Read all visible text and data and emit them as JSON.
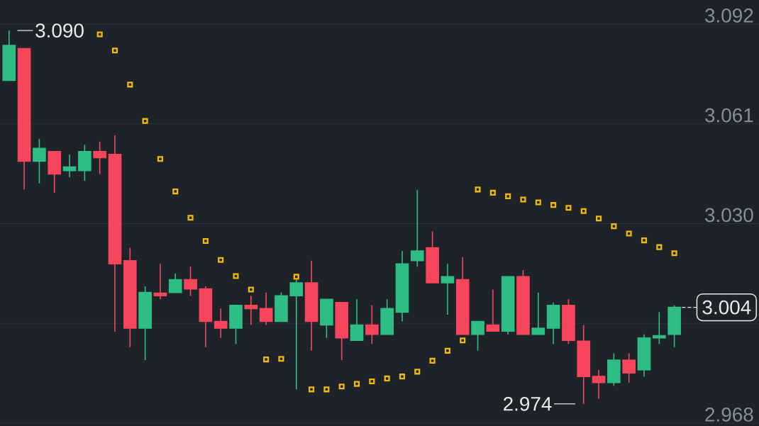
{
  "chart_data": {
    "type": "candlestick",
    "categories": [
      null,
      null,
      null,
      null,
      null,
      null,
      null,
      null,
      null,
      null,
      null,
      null,
      null,
      null,
      null,
      null,
      null,
      null,
      null,
      null,
      null,
      null,
      null,
      null,
      null,
      null,
      null,
      null,
      null,
      null,
      null,
      null,
      null,
      null,
      null,
      null,
      null,
      null,
      null,
      null,
      null,
      null,
      null,
      null,
      null
    ],
    "ohlc": [
      [
        3.0745,
        3.09,
        3.0745,
        3.0854
      ],
      [
        3.0844,
        3.0844,
        3.0406,
        3.0494
      ],
      [
        3.0494,
        3.0564,
        3.0425,
        3.0534
      ],
      [
        3.0524,
        3.0524,
        3.0396,
        3.0454
      ],
      [
        3.0465,
        3.0515,
        3.0444,
        3.0476
      ],
      [
        3.0465,
        3.0545,
        3.0433,
        3.0524
      ],
      [
        3.0524,
        3.0555,
        3.0454,
        3.0505
      ],
      [
        3.0515,
        3.0574,
        2.9964,
        3.0175
      ],
      [
        3.0185,
        3.0225,
        2.9916,
        2.9975
      ],
      [
        2.9975,
        3.0105,
        2.9876,
        3.0086
      ],
      [
        3.0084,
        3.0175,
        3.0065,
        3.0076
      ],
      [
        3.0086,
        3.0145,
        3.0086,
        3.0126
      ],
      [
        3.0126,
        3.0166,
        3.0076,
        3.0097
      ],
      [
        3.0097,
        3.0105,
        2.9916,
        2.9996
      ],
      [
        2.9996,
        3.0036,
        2.9945,
        2.9975
      ],
      [
        2.9975,
        3.0046,
        2.9926,
        3.0046
      ],
      [
        3.0046,
        3.0076,
        2.9985,
        3.0036
      ],
      [
        3.0036,
        3.0086,
        2.9985,
        2.9996
      ],
      [
        2.9996,
        3.0086,
        2.9996,
        3.0076
      ],
      [
        3.0076,
        3.0126,
        2.9785,
        3.0116
      ],
      [
        3.0116,
        3.0185,
        2.9905,
        2.9996
      ],
      [
        2.9985,
        3.0065,
        2.9945,
        3.0065
      ],
      [
        3.0055,
        3.0055,
        2.9876,
        2.9945
      ],
      [
        2.9937,
        3.0065,
        2.9937,
        2.9985
      ],
      [
        2.9985,
        3.0046,
        2.9926,
        2.9956
      ],
      [
        2.9956,
        3.0065,
        2.9956,
        3.0036
      ],
      [
        3.0025,
        3.0215,
        2.9996,
        3.0175
      ],
      [
        3.0185,
        3.0404,
        3.0166,
        3.0215
      ],
      [
        3.0225,
        3.0276,
        3.0116,
        3.0116
      ],
      [
        3.0116,
        3.0175,
        3.0017,
        3.0135
      ],
      [
        3.0126,
        3.0196,
        2.9956,
        2.9956
      ],
      [
        2.9956,
        2.9996,
        2.9905,
        2.9996
      ],
      [
        2.9985,
        3.0095,
        2.9966,
        2.9966
      ],
      [
        2.9966,
        3.0135,
        2.9956,
        3.0135
      ],
      [
        3.0135,
        3.0156,
        2.9956,
        2.9956
      ],
      [
        2.9956,
        3.0086,
        2.9956,
        2.9975
      ],
      [
        2.9975,
        3.0055,
        2.9926,
        3.0046
      ],
      [
        3.0046,
        3.0065,
        2.9926,
        2.9937
      ],
      [
        2.9935,
        2.9985,
        2.974,
        2.9825
      ],
      [
        2.9825,
        2.9846,
        2.9756,
        2.9806
      ],
      [
        2.9806,
        2.9897,
        2.9796,
        2.9876
      ],
      [
        2.9876,
        2.9897,
        2.9806,
        2.9836
      ],
      [
        2.9846,
        2.9956,
        2.9825,
        2.9945
      ],
      [
        2.9945,
        3.0025,
        2.9926,
        2.9952
      ],
      [
        2.9956,
        3.0046,
        2.9916,
        3.004
      ]
    ],
    "colors": [
      "#2ebd85",
      "#f6465d",
      "#2ebd85",
      "#f6465d",
      "#2ebd85",
      "#2ebd85",
      "#f6465d",
      "#f6465d",
      "#f6465d",
      "#2ebd85",
      "#f6465d",
      "#2ebd85",
      "#f6465d",
      "#f6465d",
      "#f6465d",
      "#2ebd85",
      "#f6465d",
      "#f6465d",
      "#2ebd85",
      "#2ebd85",
      "#f6465d",
      "#2ebd85",
      "#f6465d",
      "#2ebd85",
      "#f6465d",
      "#2ebd85",
      "#2ebd85",
      "#2ebd85",
      "#f6465d",
      "#2ebd85",
      "#f6465d",
      "#2ebd85",
      "#f6465d",
      "#2ebd85",
      "#f6465d",
      "#2ebd85",
      "#2ebd85",
      "#f6465d",
      "#f6465d",
      "#f6465d",
      "#2ebd85",
      "#f6465d",
      "#2ebd85",
      "#2ebd85",
      "#2ebd85"
    ],
    "series": [
      {
        "type": "scatter",
        "color": "#f0b90b",
        "values": [
          null,
          null,
          null,
          null,
          null,
          null,
          3.0888,
          3.0838,
          3.0732,
          3.0619,
          3.0501,
          3.04,
          3.0318,
          3.0246,
          3.0187,
          3.0137,
          3.0095,
          2.9878,
          2.988,
          3.0135,
          2.9785,
          2.9785,
          2.9794,
          2.9802,
          2.981,
          2.9819,
          2.9825,
          2.984,
          2.9874,
          2.9905,
          2.9937,
          3.0406,
          3.0396,
          3.0385,
          3.0375,
          3.0366,
          3.0358,
          3.0349,
          3.0339,
          3.0316,
          3.0292,
          3.0269,
          3.0248,
          3.0227,
          3.0208
        ]
      }
    ],
    "marker": "square",
    "ylim": [
      2.968,
      3.092
    ],
    "yticks": [
      2.968,
      {
        "value": 2.999,
        "label": null
      },
      {
        "value": 3.03,
        "label": "3.030"
      },
      3.061,
      3.092
    ],
    "grid": "y",
    "tick_labels": "y",
    "ref_lines": [
      {
        "axis": "y",
        "value": 3.004,
        "label": "3.004",
        "line_style": "dashed",
        "color": "#eaecef"
      }
    ],
    "annotations": [
      "3.090",
      "2.974"
    ]
  }
}
